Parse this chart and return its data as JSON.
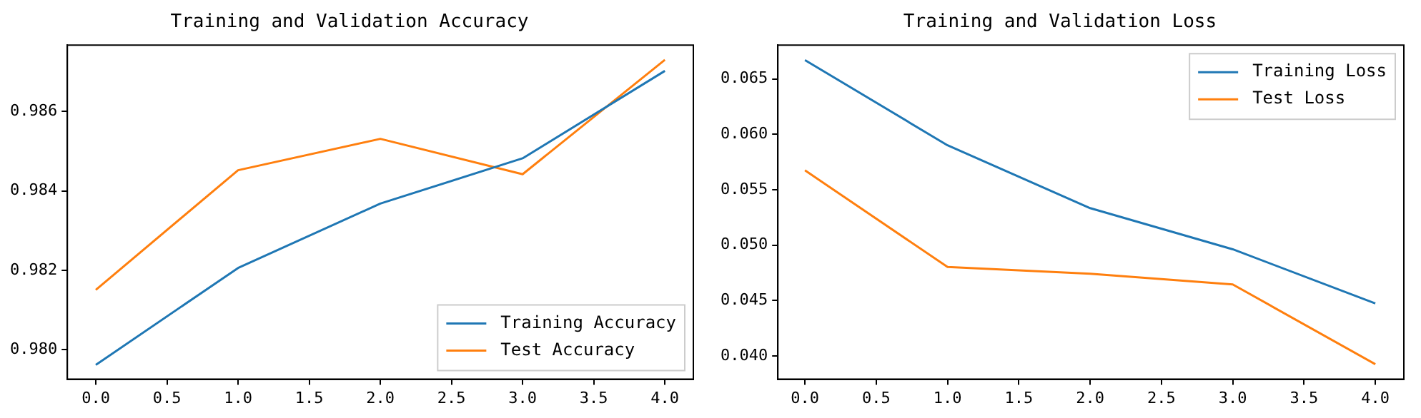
{
  "chart_data": [
    {
      "type": "line",
      "title": "Training and Validation Accuracy",
      "x": [
        0,
        1,
        2,
        3,
        4
      ],
      "xlim": [
        -0.2,
        4.2
      ],
      "xticks": [
        {
          "value": 0,
          "label": "0.0"
        },
        {
          "value": 0.5,
          "label": "0.5"
        },
        {
          "value": 1,
          "label": "1.0"
        },
        {
          "value": 1.5,
          "label": "1.5"
        },
        {
          "value": 2,
          "label": "2.0"
        },
        {
          "value": 2.5,
          "label": "2.5"
        },
        {
          "value": 3,
          "label": "3.0"
        },
        {
          "value": 3.5,
          "label": "3.5"
        },
        {
          "value": 4,
          "label": "4.0"
        }
      ],
      "ylim": [
        0.97926,
        0.98767
      ],
      "yticks": [
        {
          "value": 0.98,
          "label": "0.980"
        },
        0.982,
        0.984,
        0.986
      ],
      "grid": false,
      "legend": "bottom right",
      "marker": "none",
      "line_style": "solid",
      "series": [
        {
          "name": "Training Accuracy",
          "color": "#1f77b4",
          "values": [
            0.97962,
            0.98206,
            0.98368,
            0.98482,
            0.98702
          ]
        },
        {
          "name": "Test Accuracy",
          "color": "#ff7f0e",
          "values": [
            0.98151,
            0.98452,
            0.98531,
            0.98442,
            0.9873
          ]
        }
      ]
    },
    {
      "type": "line",
      "title": "Training and Validation Loss",
      "x": [
        0,
        1,
        2,
        3,
        4
      ],
      "xlim": [
        -0.19,
        4.2
      ],
      "xticks": [
        {
          "value": 0,
          "label": "0.0"
        },
        {
          "value": 0.5,
          "label": "0.5"
        },
        {
          "value": 1,
          "label": "1.0"
        },
        {
          "value": 1.5,
          "label": "1.5"
        },
        {
          "value": 2,
          "label": "2.0"
        },
        {
          "value": 2.5,
          "label": "2.5"
        },
        {
          "value": 3,
          "label": "3.0"
        },
        {
          "value": 3.5,
          "label": "3.5"
        },
        {
          "value": 4,
          "label": "4.0"
        }
      ],
      "ylim": [
        0.03791,
        0.06805
      ],
      "yticks": [
        {
          "value": 0.04,
          "label": "0.040"
        },
        0.045,
        {
          "value": 0.05,
          "label": "0.050"
        },
        0.055,
        {
          "value": 0.06,
          "label": "0.060"
        },
        0.065
      ],
      "grid": false,
      "legend": "top right",
      "marker": "none",
      "line_style": "solid",
      "series": [
        {
          "name": "Training Loss",
          "color": "#1f77b4",
          "values": [
            0.06669,
            0.05901,
            0.05334,
            0.04963,
            0.04475
          ]
        },
        {
          "name": "Test Loss",
          "color": "#ff7f0e",
          "values": [
            0.05675,
            0.04803,
            0.04742,
            0.04646,
            0.03926
          ]
        }
      ]
    }
  ]
}
